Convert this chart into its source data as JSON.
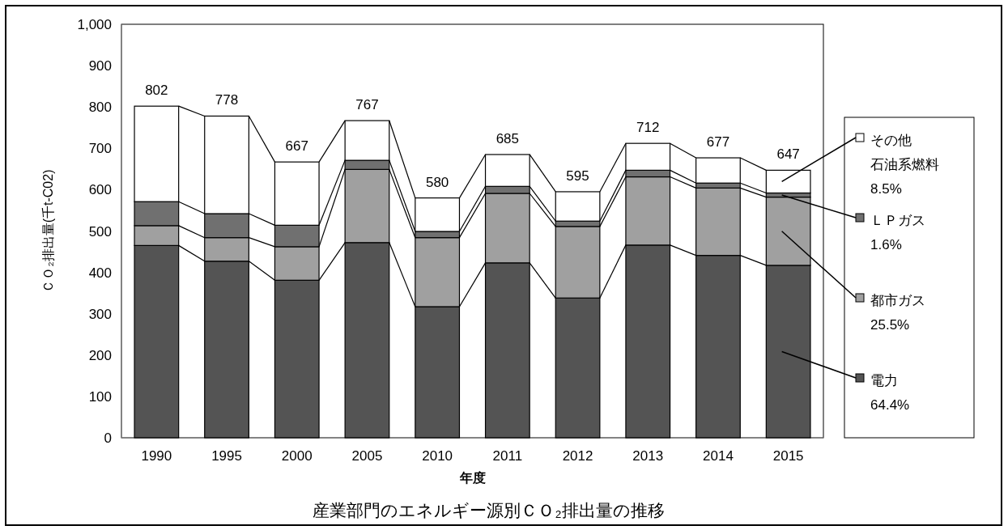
{
  "chart_data": {
    "type": "bar",
    "stacked": true,
    "title": "産業部門のエネルギー源別ＣＯ₂排出量の推移",
    "xlabel": "年度",
    "ylabel": "ＣＯ₂排出量(千t-C02)",
    "categories": [
      "1990",
      "1995",
      "2000",
      "2005",
      "2010",
      "2011",
      "2012",
      "2013",
      "2014",
      "2015"
    ],
    "series": [
      {
        "name": "電力",
        "color": "#545454",
        "values": [
          465,
          427,
          381,
          472,
          317,
          423,
          338,
          466,
          441,
          417
        ]
      },
      {
        "name": "都市ガス",
        "color": "#a0a0a0",
        "values": [
          48,
          57,
          81,
          177,
          167,
          168,
          173,
          165,
          163,
          165
        ]
      },
      {
        "name": "ＬＰガス",
        "color": "#707070",
        "values": [
          58,
          58,
          52,
          22,
          15,
          17,
          13,
          16,
          12,
          10
        ]
      },
      {
        "name": "その他石油系燃料",
        "color": "#ffffff",
        "values": [
          231,
          236,
          153,
          96,
          81,
          77,
          71,
          65,
          61,
          55
        ]
      }
    ],
    "totals": [
      "802",
      "778",
      "667",
      "767",
      "580",
      "685",
      "595",
      "712",
      "677",
      "647"
    ],
    "ylim": [
      0,
      1000
    ],
    "yticks": [
      0,
      100,
      200,
      300,
      400,
      500,
      600,
      700,
      800,
      900,
      {
        "value": 1000,
        "label": "1,000"
      }
    ],
    "grid": false,
    "legend": "right",
    "annotations": [
      "64.4%",
      "25.5%",
      "1.6%",
      "8.5%"
    ]
  }
}
